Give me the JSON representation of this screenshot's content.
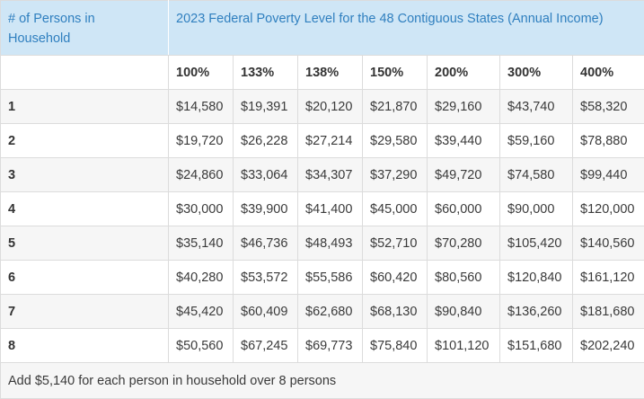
{
  "header": {
    "persons_label": "# of Persons in Household",
    "title": "2023 Federal Poverty Level for the 48 Contiguous States (Annual Income)"
  },
  "columns": [
    "100%",
    "133%",
    "138%",
    "150%",
    "200%",
    "300%",
    "400%"
  ],
  "rows": [
    {
      "label": "1",
      "values": [
        "$14,580",
        "$19,391",
        "$20,120",
        "$21,870",
        "$29,160",
        "$43,740",
        "$58,320"
      ]
    },
    {
      "label": "2",
      "values": [
        "$19,720",
        "$26,228",
        "$27,214",
        "$29,580",
        "$39,440",
        "$59,160",
        "$78,880"
      ]
    },
    {
      "label": "3",
      "values": [
        "$24,860",
        "$33,064",
        "$34,307",
        "$37,290",
        "$49,720",
        "$74,580",
        "$99,440"
      ]
    },
    {
      "label": "4",
      "values": [
        "$30,000",
        "$39,900",
        "$41,400",
        "$45,000",
        "$60,000",
        "$90,000",
        "$120,000"
      ]
    },
    {
      "label": "5",
      "values": [
        "$35,140",
        "$46,736",
        "$48,493",
        "$52,710",
        "$70,280",
        "$105,420",
        "$140,560"
      ]
    },
    {
      "label": "6",
      "values": [
        "$40,280",
        "$53,572",
        "$55,586",
        "$60,420",
        "$80,560",
        "$120,840",
        "$161,120"
      ]
    },
    {
      "label": "7",
      "values": [
        "$45,420",
        "$60,409",
        "$62,680",
        "$68,130",
        "$90,840",
        "$136,260",
        "$181,680"
      ]
    },
    {
      "label": "8",
      "values": [
        "$50,560",
        "$67,245",
        "$69,773",
        "$75,840",
        "$101,120",
        "$151,680",
        "$202,240"
      ]
    }
  ],
  "footer": "Add $5,140 for each person in household over 8 persons"
}
